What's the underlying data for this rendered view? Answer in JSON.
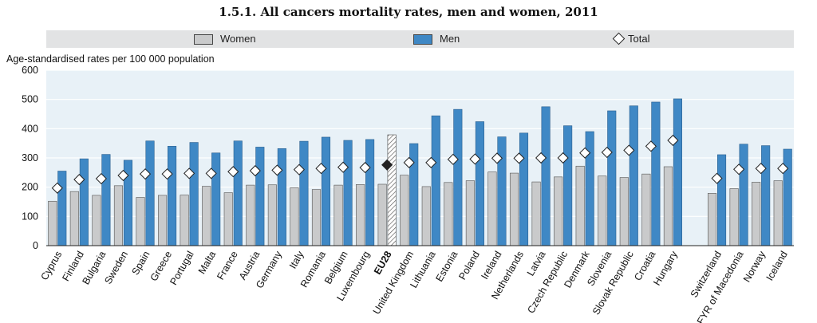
{
  "title": "1.5.1.  All cancers mortality rates, men and women, 2011",
  "legend": {
    "women": "Women",
    "men": "Men",
    "total": "Total"
  },
  "colors": {
    "women": "#c9cacb",
    "men": "#3f88c5",
    "total": "#ffffff",
    "eu_total": "#222222",
    "plot_bg": "#e8f1f7"
  },
  "chart_data": {
    "type": "bar",
    "ylabel": "Age-standardised rates per 100 000 population",
    "ylim": [
      0,
      600
    ],
    "yticks": [
      0,
      100,
      200,
      300,
      400,
      500,
      600
    ],
    "categories": [
      "Cyprus",
      "Finland",
      "Bulgaria",
      "Sweden",
      "Spain",
      "Greece",
      "Portugal",
      "Malta",
      "France",
      "Austria",
      "Germany",
      "Italy",
      "Romania",
      "Belgium",
      "Luxembourg",
      "EU28",
      "United Kingdom",
      "Lithuania",
      "Estonia",
      "Poland",
      "Ireland",
      "Netherlands",
      "Latvia",
      "Czech Republic",
      "Denmark",
      "Slovenia",
      "Slovak Republic",
      "Croatia",
      "Hungary",
      "",
      "Switzerland",
      "FYR of Macedonia",
      "Norway",
      "Iceland"
    ],
    "highlight_category": "EU28",
    "series": [
      {
        "name": "Women",
        "values": [
          152,
          185,
          172,
          205,
          165,
          172,
          173,
          203,
          181,
          207,
          208,
          198,
          192,
          207,
          209,
          210,
          241,
          202,
          216,
          222,
          252,
          248,
          218,
          235,
          272,
          238,
          233,
          245,
          270,
          null,
          179,
          195,
          217,
          222
        ]
      },
      {
        "name": "Men",
        "values": [
          255,
          297,
          312,
          292,
          358,
          340,
          353,
          317,
          358,
          337,
          332,
          357,
          371,
          360,
          363,
          379,
          349,
          444,
          466,
          424,
          372,
          385,
          475,
          410,
          390,
          461,
          478,
          491,
          502,
          null,
          311,
          347,
          342,
          330
        ]
      },
      {
        "name": "Total",
        "values": [
          197,
          226,
          229,
          240,
          245,
          245,
          247,
          247,
          253,
          256,
          258,
          260,
          264,
          268,
          267,
          276,
          284,
          284,
          295,
          296,
          299,
          299,
          300,
          300,
          317,
          319,
          326,
          340,
          360,
          null,
          230,
          261,
          264,
          264
        ]
      }
    ]
  }
}
